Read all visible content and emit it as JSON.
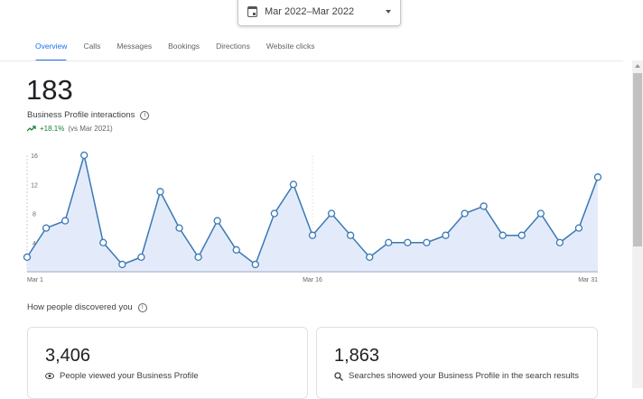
{
  "date_range": {
    "label": "Mar 2022–Mar 2022"
  },
  "tabs": [
    {
      "label": "Overview",
      "active": true
    },
    {
      "label": "Calls"
    },
    {
      "label": "Messages"
    },
    {
      "label": "Bookings"
    },
    {
      "label": "Directions"
    },
    {
      "label": "Website clicks"
    }
  ],
  "summary": {
    "total": "183",
    "label": "Business Profile interactions",
    "change": "+18.1%",
    "compare": "(vs Mar 2021)"
  },
  "chart_data": {
    "type": "line",
    "x_ticks": [
      "Mar 1",
      "Mar 16",
      "Mar 31"
    ],
    "y_ticks": [
      4,
      8,
      12,
      16
    ],
    "ylim": [
      0,
      16
    ],
    "values": [
      2,
      6,
      7,
      16,
      4,
      1,
      2,
      11,
      6,
      2,
      7,
      3,
      1,
      8,
      12,
      5,
      8,
      5,
      2,
      4,
      4,
      4,
      5,
      8,
      9,
      5,
      5,
      8,
      4,
      6,
      13
    ],
    "line_color": "#3a78b5",
    "fill_color": "#e3ebfb"
  },
  "discovery": {
    "title": "How people discovered you",
    "cards": [
      {
        "value": "3,406",
        "label": "People viewed your Business Profile",
        "icon": "eye-icon"
      },
      {
        "value": "1,863",
        "label": "Searches showed your Business Profile in the search results",
        "icon": "search-icon"
      }
    ]
  }
}
